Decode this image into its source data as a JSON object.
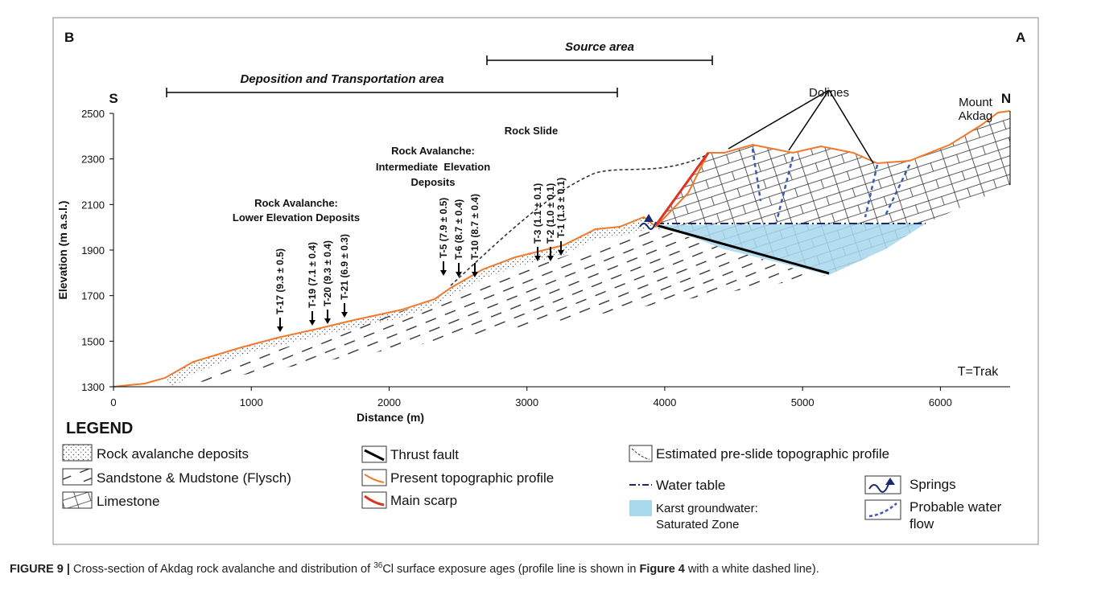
{
  "panel_labels": {
    "left": "B",
    "right": "A"
  },
  "areas": {
    "source": "Source area",
    "deposition": "Deposition and Transportation area"
  },
  "orientation": {
    "south": "S",
    "north": "N"
  },
  "axes": {
    "x": {
      "title": "Distance (m)",
      "lim": [
        0,
        6500
      ],
      "ticks": [
        0,
        1000,
        2000,
        3000,
        4000,
        5000,
        6000
      ]
    },
    "y": {
      "title": "Elevation (m a.s.l.)",
      "lim": [
        1300,
        2500
      ],
      "ticks": [
        1300,
        1500,
        1700,
        1900,
        2100,
        2300,
        2500
      ]
    }
  },
  "annotations": {
    "lower": [
      "Rock Avalanche:",
      "Lower Elevation Deposits"
    ],
    "intermediate": [
      "Rock Avalanche:",
      "Intermediate  Elevation",
      "Deposits"
    ],
    "rock_slide": "Rock Slide",
    "dolines": "Dolines",
    "mount": [
      "Mount",
      "Akdag"
    ],
    "note": "T=Trak"
  },
  "samples": [
    "T-17 (9.3 ± 0.5)",
    "T-19 (7.1 ± 0.4)",
    "T-20 (9.3 ± 0.4)",
    "T-21 (6.9 ± 0.3)",
    "T-5 (7.9 ± 0.5)",
    "T-6 (8.7 ± 0.4)",
    "T-10 (8.7 ± 0.4)",
    "T-3 (1.1 ± 0.1)",
    "T-2 (1.0 ± 0.1)",
    "T-1 (1.3 ± 0.1)"
  ],
  "legend": {
    "title": "LEGEND",
    "items": [
      "Rock avalanche deposits",
      "Sandstone & Mudstone (Flysch)",
      "Limestone",
      "Thrust fault",
      "Present topographic profile",
      "Main scarp",
      "Estimated pre-slide topographic profile",
      "Water table",
      "Karst groundwater:",
      "Saturated Zone",
      "Springs",
      "Probable water",
      "flow"
    ]
  },
  "caption": {
    "label": "FIGURE 9 |",
    "text1": " Cross-section of Akdag rock avalanche and distribution of ",
    "sup": "36",
    "text2": "Cl surface exposure ages (profile line is shown in ",
    "ref": "Figure 4",
    "text3": " with a white dashed line)."
  }
}
